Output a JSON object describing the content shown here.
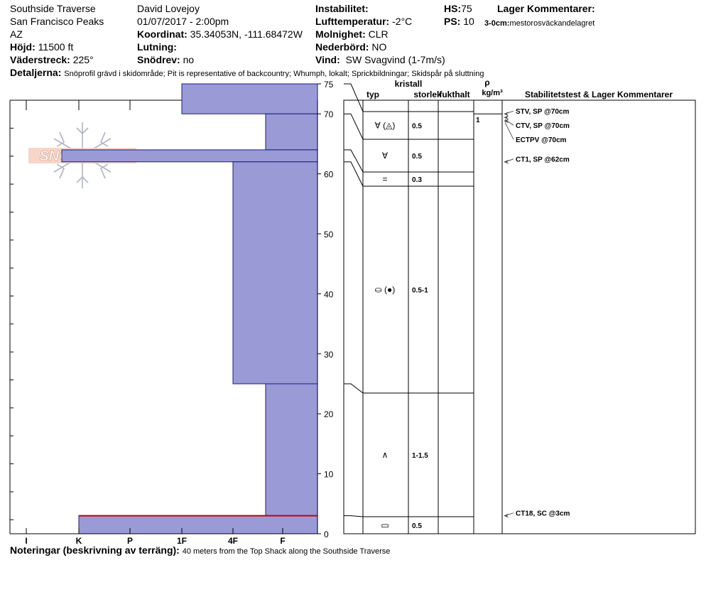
{
  "header": {
    "location": "Southside Traverse",
    "range": "San Francisco Peaks",
    "state": "AZ",
    "elevation_label": "Höjd:",
    "elevation": "11500 ft",
    "aspect_label": "Väderstreck:",
    "aspect": "225°",
    "observer": "David Lovejoy",
    "datetime": "01/07/2017 - 2:00pm",
    "coord_label": "Koordinat:",
    "coord": "35.34053N, -111.68472W",
    "slope_label": "Lutning:",
    "slope": "",
    "drift_label": "Snödrev:",
    "drift": "no",
    "instability_label": "Instabilitet:",
    "instability": "",
    "airtemp_label": "Lufttemperatur:",
    "airtemp": "-2°C",
    "sky_label": "Molnighet:",
    "sky": "CLR",
    "precip_label": "Nederbörd:",
    "precip": "NO",
    "wind_label": "Vind:",
    "wind": "SW  Svagvind (1-7m/s)",
    "hs_label": "HS:",
    "hs": "75",
    "ps_label": "PS:",
    "ps": "10",
    "layer_comments_label": "Lager Kommentarer:",
    "layer_comment_range": "3-0cm:",
    "layer_comment": "mestorosväckandelagret",
    "details_label": "Detaljerna:",
    "details": "Snöprofil grävd i skidområde;  Pit is representative of backcountry;  Whumph, lokalt;  Sprickbildningar;  Skidspår på sluttning",
    "notes_label": "Noteringar (beskrivning av terräng):",
    "notes": "40 meters from the Top Shack along the Southside Traverse"
  },
  "logo_text": "SNOWPILOT",
  "columns": {
    "crystal": "kristall",
    "type": "typ",
    "size": "storlek",
    "moisture": "fukthalt",
    "rho": "ρ",
    "density_unit": "kg/m³",
    "tests": "Stabilitetstest & Lager Kommentarer"
  },
  "chart_data": {
    "type": "bar",
    "orientation": "horizontal",
    "ylabel": "",
    "xlabel": "",
    "ylim": [
      0,
      75
    ],
    "y_ticks": [
      0,
      10,
      20,
      30,
      40,
      50,
      60,
      70,
      75
    ],
    "hardness_scale": [
      "I",
      "K",
      "P",
      "1F",
      "4F",
      "F"
    ],
    "hardness_scale_order": [
      "F",
      "4F",
      "1F",
      "P",
      "K",
      "I"
    ],
    "colors": {
      "layer_fill": "#9a9ad6",
      "layer_edge": "#1a1a8c",
      "crust_line": "#cc0000"
    },
    "layers": [
      {
        "bottom": 70,
        "top": 75,
        "hardness": "1F"
      },
      {
        "bottom": 64,
        "top": 70,
        "hardness": "F+"
      },
      {
        "bottom": 62,
        "top": 64,
        "hardness": "K+"
      },
      {
        "bottom": 25,
        "top": 62,
        "hardness": "4F"
      },
      {
        "bottom": 3,
        "top": 25,
        "hardness": "F+"
      },
      {
        "bottom": 0,
        "top": 3,
        "hardness": "K"
      }
    ],
    "layer_boundaries": [
      75,
      70,
      64,
      62,
      25,
      3,
      0
    ],
    "crystals": [
      {
        "bottom": 70,
        "top": 75,
        "type": "∀ (◬)",
        "size": "0.5"
      },
      {
        "bottom": 64,
        "top": 70,
        "type": "∀",
        "size": "0.5"
      },
      {
        "bottom": 62,
        "top": 64,
        "type": "=",
        "size": "0.3"
      },
      {
        "bottom": 25,
        "top": 62,
        "type": "⛀ (●)",
        "size": "0.5-1"
      },
      {
        "bottom": 3,
        "top": 25,
        "type": "∧",
        "size": "1-1.5"
      },
      {
        "bottom": 0,
        "top": 3,
        "type": "▭",
        "size": "0.5"
      }
    ],
    "density_marks": [
      {
        "depth": 70,
        "label": "1"
      }
    ],
    "tests": [
      {
        "depth": 70,
        "label": "STV, SP @70cm"
      },
      {
        "depth": 70,
        "label": "CTV, SP @70cm"
      },
      {
        "depth": 70,
        "label": "ECTPV @70cm"
      },
      {
        "depth": 62,
        "label": "CT1, SP @62cm"
      },
      {
        "depth": 3,
        "label": "CT18, SC @3cm"
      }
    ]
  }
}
